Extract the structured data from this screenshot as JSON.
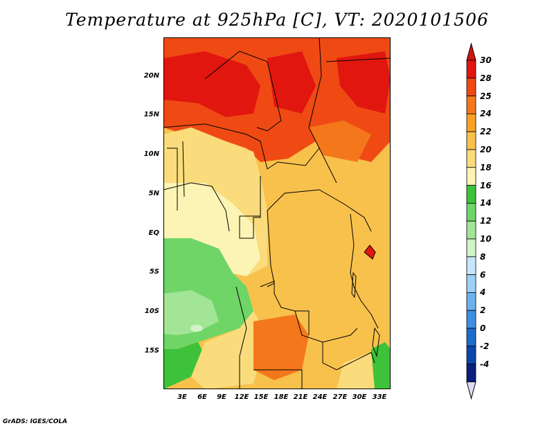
{
  "title": "Temperature at 925hPa [C], VT: 2020101506",
  "credit": "GrADS: IGES/COLA",
  "lat_labels": [
    "20N",
    "15N",
    "10N",
    "5N",
    "EQ",
    "5S",
    "10S",
    "15S"
  ],
  "lon_labels": [
    "3E",
    "6E",
    "9E",
    "12E",
    "15E",
    "18E",
    "21E",
    "24E",
    "27E",
    "30E",
    "33E"
  ],
  "colorbar": {
    "labels": [
      "30",
      "28",
      "25",
      "24",
      "22",
      "20",
      "18",
      "16",
      "14",
      "12",
      "10",
      "8",
      "6",
      "4",
      "2",
      "0",
      "-2",
      "-4"
    ],
    "colors": [
      "#e1160f",
      "#ef4a14",
      "#f4781b",
      "#f7a226",
      "#f8c14c",
      "#fadc7c",
      "#fbf4b4",
      "#3ec23a",
      "#6fd567",
      "#a2e596",
      "#d0f4c8",
      "#c8e6fb",
      "#9cd0f6",
      "#6cb2ee",
      "#3f8fe2",
      "#1d6bcb",
      "#0b46ad",
      "#0a1e7d",
      "#0a0a55"
    ],
    "top_color": "#d11510",
    "bottom_color": "#dcdcf8"
  }
}
